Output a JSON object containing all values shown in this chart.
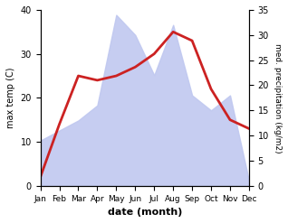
{
  "months": [
    "Jan",
    "Feb",
    "Mar",
    "Apr",
    "May",
    "Jun",
    "Jul",
    "Aug",
    "Sep",
    "Oct",
    "Nov",
    "Dec"
  ],
  "temperature": [
    2,
    14,
    25,
    24,
    25,
    27,
    30,
    35,
    33,
    22,
    15,
    13
  ],
  "precipitation_right": [
    9,
    11,
    13,
    16,
    34,
    30,
    22,
    32,
    18,
    15,
    18,
    1
  ],
  "temp_color": "#cc2222",
  "precip_color": "#c0c8f0",
  "temp_ylim": [
    0,
    40
  ],
  "precip_ylim": [
    0,
    35
  ],
  "xlabel": "date (month)",
  "ylabel_left": "max temp (C)",
  "ylabel_right": "med. precipitation (kg/m2)",
  "bg_color": "#ffffff",
  "line_width": 2.0
}
